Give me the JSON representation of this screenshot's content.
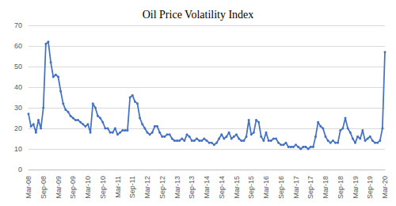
{
  "chart_data": {
    "type": "line",
    "title": "Oil Price Volatility Index",
    "categories": [
      "Mar-08",
      null,
      null,
      null,
      null,
      null,
      "Sep-08",
      null,
      null,
      null,
      null,
      null,
      "Mar-09",
      null,
      null,
      null,
      null,
      null,
      "Sep-09",
      null,
      null,
      null,
      null,
      null,
      "Mar-10",
      null,
      null,
      null,
      null,
      null,
      "Sep-10",
      null,
      null,
      null,
      null,
      null,
      "Mar-11",
      null,
      null,
      null,
      null,
      null,
      "Sep-11",
      null,
      null,
      null,
      null,
      null,
      "Mar-12",
      null,
      null,
      null,
      null,
      null,
      "Sep-12",
      null,
      null,
      null,
      null,
      null,
      "Mar-13",
      null,
      null,
      null,
      null,
      null,
      "Sep-13",
      null,
      null,
      null,
      null,
      null,
      "Mar-14",
      null,
      null,
      null,
      null,
      null,
      "Sep-14",
      null,
      null,
      null,
      null,
      null,
      "Mar-15",
      null,
      null,
      null,
      null,
      null,
      "Sep-15",
      null,
      null,
      null,
      null,
      null,
      "Mar-16",
      null,
      null,
      null,
      null,
      null,
      "Sep-16",
      null,
      null,
      null,
      null,
      null,
      "Mar-17",
      null,
      null,
      null,
      null,
      null,
      "Sep-17",
      null,
      null,
      null,
      null,
      null,
      "Mar-18",
      null,
      null,
      null,
      null,
      null,
      "Sep-18",
      null,
      null,
      null,
      null,
      null,
      "Mar-19",
      null,
      null,
      null,
      null,
      null,
      "Sep-19",
      null,
      null,
      null,
      null,
      null,
      "Mar-20"
    ],
    "values": [
      27,
      21,
      22,
      18,
      24,
      20,
      30,
      61,
      62,
      52,
      45,
      46,
      45,
      38,
      32,
      29,
      28,
      26,
      25,
      24,
      24,
      23,
      22,
      21,
      22,
      18,
      32,
      30,
      26,
      25,
      23,
      20,
      20,
      18,
      18,
      20,
      17,
      18,
      19,
      19,
      19,
      35,
      36,
      33,
      32,
      25,
      22,
      20,
      18,
      17,
      18,
      21,
      21,
      18,
      16,
      16,
      17,
      17,
      15,
      14,
      14,
      14,
      15,
      14,
      17,
      16,
      14,
      14,
      15,
      14,
      14,
      15,
      14,
      13,
      13,
      12,
      13,
      15,
      17,
      15,
      16,
      18,
      15,
      16,
      17,
      15,
      14,
      14,
      16,
      24,
      17,
      18,
      24,
      23,
      16,
      14,
      18,
      14,
      14,
      15,
      15,
      13,
      12,
      12,
      13,
      11,
      11,
      11,
      12,
      11,
      10,
      11,
      11,
      10,
      11,
      11,
      16,
      23,
      21,
      20,
      16,
      14,
      13,
      14,
      13,
      13,
      19,
      20,
      25,
      20,
      18,
      15,
      13,
      16,
      15,
      19,
      14,
      15,
      16,
      14,
      13,
      13,
      14,
      20,
      57
    ],
    "color": "#4472c4",
    "marker": "circle",
    "ylim": [
      0,
      70
    ],
    "yticks": [
      0,
      10,
      20,
      30,
      40,
      50,
      60,
      70
    ],
    "grid": true
  }
}
